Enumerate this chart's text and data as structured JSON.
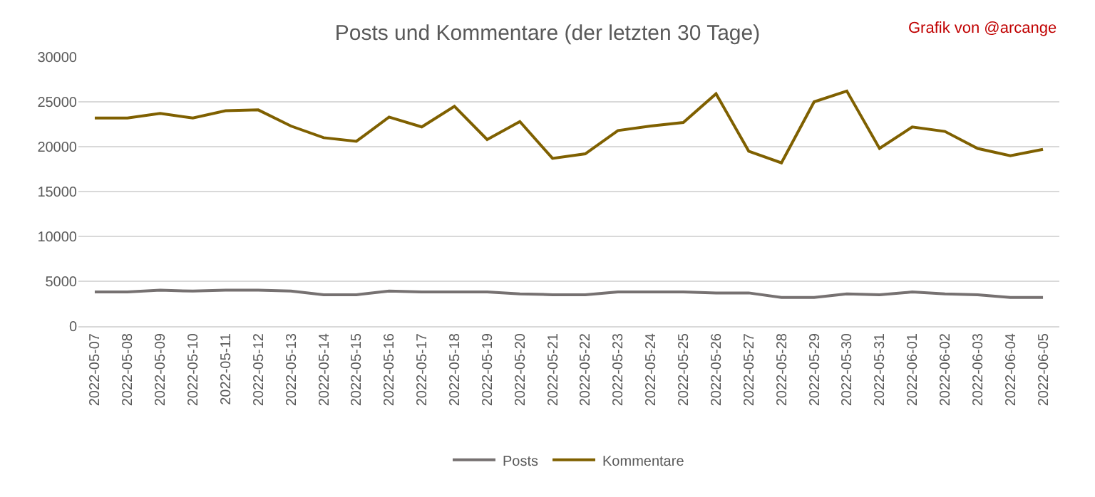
{
  "chart_data": {
    "type": "line",
    "title": "Posts und Kommentare (der letzten 30 Tage)",
    "annotations": [
      "Grafik von @arcange"
    ],
    "categories": [
      "2022-05-07",
      "2022-05-08",
      "2022-05-09",
      "2022-05-10",
      "2022-05-11",
      "2022-05-12",
      "2022-05-13",
      "2022-05-14",
      "2022-05-15",
      "2022-05-16",
      "2022-05-17",
      "2022-05-18",
      "2022-05-19",
      "2022-05-20",
      "2022-05-21",
      "2022-05-22",
      "2022-05-23",
      "2022-05-24",
      "2022-05-25",
      "2022-05-26",
      "2022-05-27",
      "2022-05-28",
      "2022-05-29",
      "2022-05-30",
      "2022-05-31",
      "2022-06-01",
      "2022-06-02",
      "2022-06-03",
      "2022-06-04",
      "2022-06-05"
    ],
    "series": [
      {
        "name": "Posts",
        "color": "#767171",
        "values": [
          3800,
          3800,
          4000,
          3900,
          4000,
          4000,
          3900,
          3500,
          3500,
          3900,
          3800,
          3800,
          3800,
          3600,
          3500,
          3500,
          3800,
          3800,
          3800,
          3700,
          3700,
          3200,
          3200,
          3600,
          3500,
          3800,
          3600,
          3500,
          3200,
          3200
        ]
      },
      {
        "name": "Kommentare",
        "color": "#7f6000",
        "values": [
          23200,
          23200,
          23700,
          23200,
          24000,
          24100,
          22300,
          21000,
          20600,
          23300,
          22200,
          24500,
          20800,
          22800,
          18700,
          19200,
          21800,
          22300,
          22700,
          25900,
          19500,
          18200,
          25000,
          26200,
          19800,
          22200,
          21700,
          19800,
          19000,
          19700
        ]
      }
    ],
    "ylim": [
      0,
      30000
    ],
    "yticks": [
      0,
      5000,
      10000,
      15000,
      20000,
      25000,
      30000
    ],
    "grid": "y",
    "legend": "bottom",
    "marker": "none",
    "line_style": "solid"
  }
}
